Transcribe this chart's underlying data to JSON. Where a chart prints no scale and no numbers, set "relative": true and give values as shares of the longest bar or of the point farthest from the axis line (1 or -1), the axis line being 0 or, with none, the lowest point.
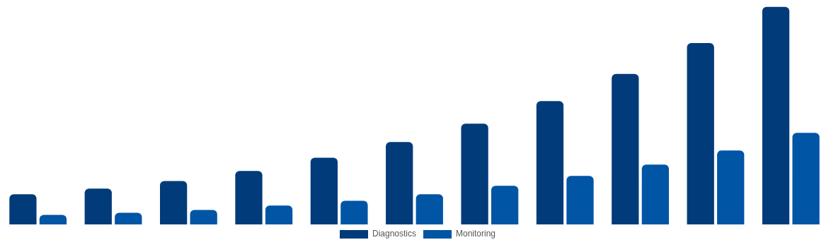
{
  "chart_data": {
    "type": "bar",
    "relative": true,
    "categories": [
      null,
      null,
      null,
      null,
      null,
      null,
      null,
      null,
      null,
      null,
      null
    ],
    "legend": "bottom",
    "series": [
      {
        "name": "Diagnostics",
        "color": "#023b7a",
        "values": [
          0.14,
          0.166,
          0.201,
          0.247,
          0.308,
          0.38,
          0.464,
          0.568,
          0.692,
          0.834,
          1
        ]
      },
      {
        "name": "Monitoring",
        "color": "#0055a5",
        "values": [
          0.045,
          0.055,
          0.068,
          0.088,
          0.11,
          0.14,
          0.179,
          0.224,
          0.276,
          0.341,
          0.422
        ]
      }
    ]
  }
}
